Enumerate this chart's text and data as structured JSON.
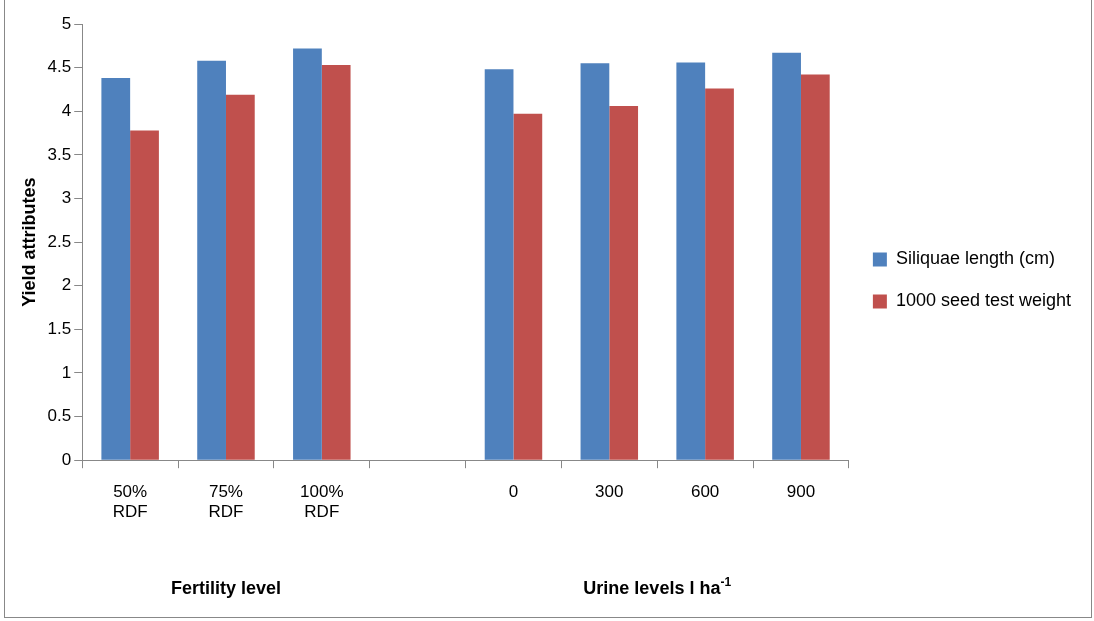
{
  "chart_data": {
    "type": "bar",
    "ylabel": "Yield attributes",
    "categories": [
      "50% RDF",
      "75% RDF",
      "100% RDF",
      null,
      "0",
      "300",
      "600",
      "900"
    ],
    "series": [
      {
        "name": "Siliquae length (cm)",
        "color": "#4f81bd",
        "values": [
          4.38,
          4.58,
          4.72,
          null,
          4.48,
          4.55,
          4.56,
          4.67
        ]
      },
      {
        "name": "1000 seed test weight",
        "color": "#c0504d",
        "values": [
          3.78,
          4.19,
          4.53,
          null,
          3.97,
          4.06,
          4.26,
          4.42
        ]
      }
    ],
    "ylim": [
      0,
      5
    ],
    "yticks": [
      0,
      0.5,
      1,
      1.5,
      2,
      2.5,
      3,
      3.5,
      4,
      4.5,
      5
    ],
    "annotations": [
      "Fertility level",
      "Urine levels l ha$^{-1}$"
    ],
    "grid": false,
    "legend": "right"
  }
}
